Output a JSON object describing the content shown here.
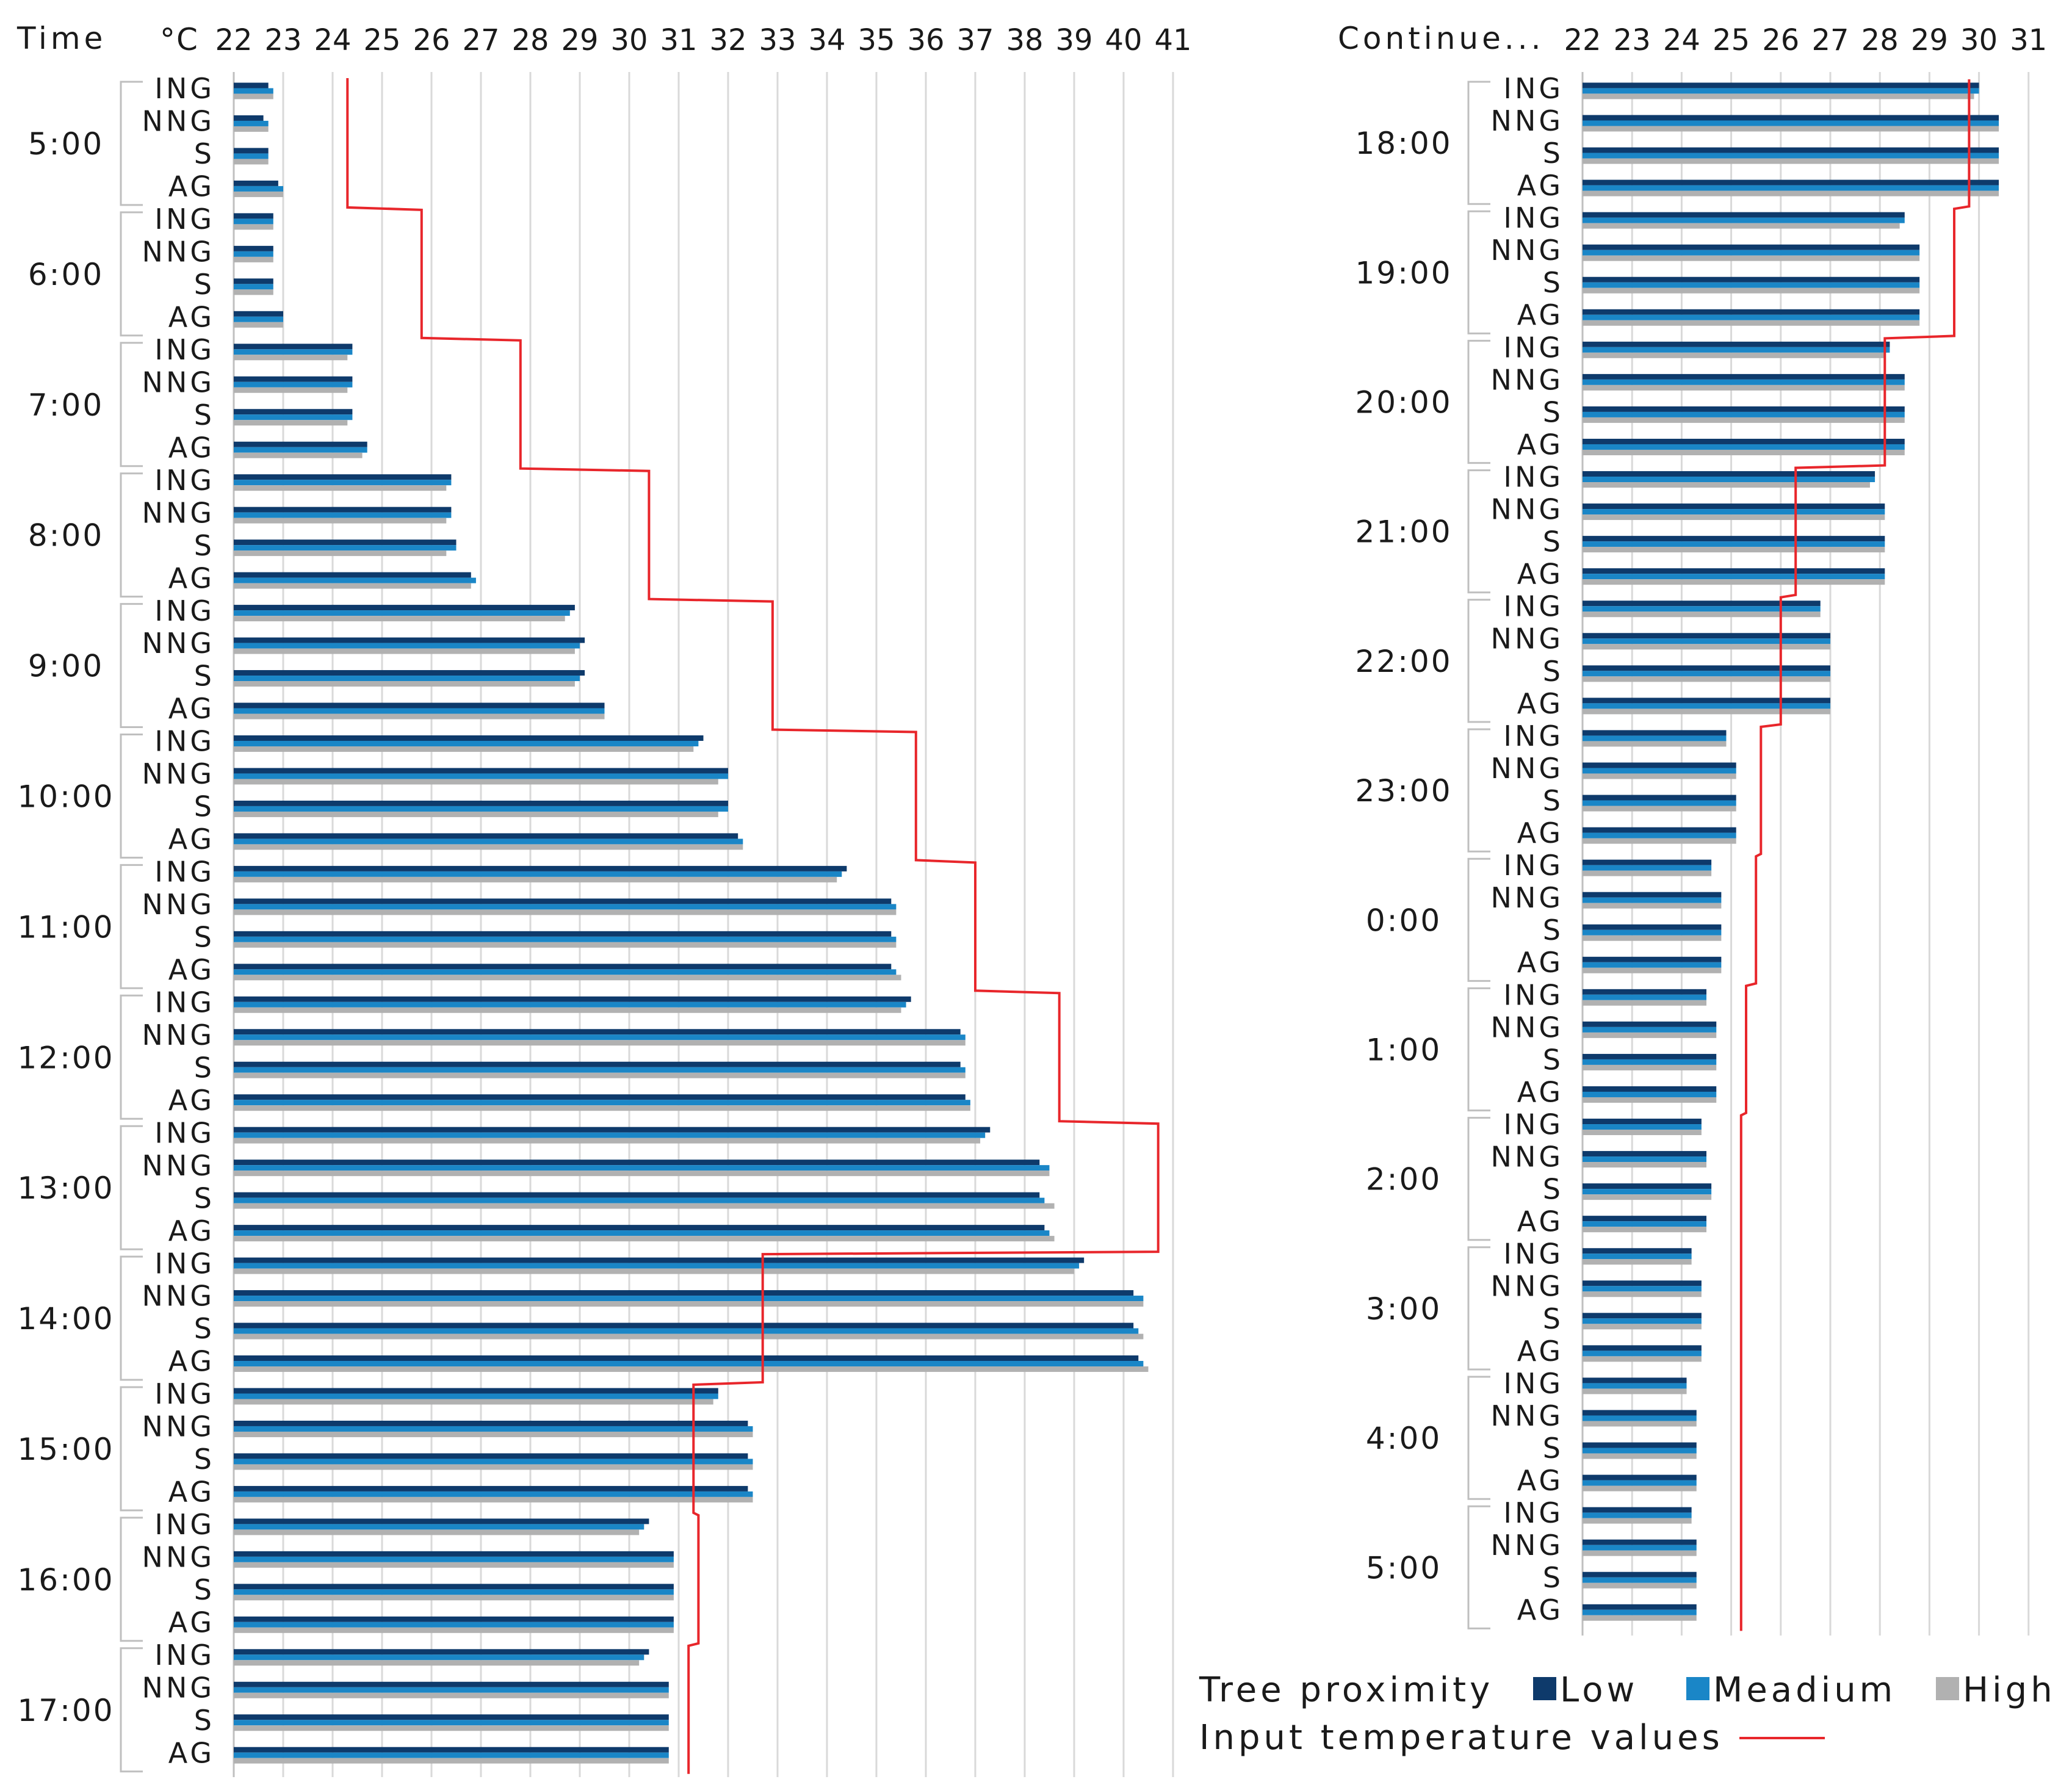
{
  "chart_data": {
    "type": "bar",
    "orientation": "horizontal",
    "unit_label": "°C",
    "time_header": "Time",
    "continue_header": "Continue...",
    "panels": [
      {
        "name": "left",
        "xlim": [
          22,
          41
        ],
        "ticks": [
          22,
          23,
          24,
          25,
          26,
          27,
          28,
          29,
          30,
          31,
          32,
          33,
          34,
          35,
          36,
          37,
          38,
          39,
          40,
          41
        ]
      },
      {
        "name": "right",
        "xlim": [
          22,
          31
        ],
        "ticks": [
          22,
          23,
          24,
          25,
          26,
          27,
          28,
          29,
          30,
          31
        ]
      }
    ],
    "categories": [
      "ING",
      "NNG",
      "S",
      "AG"
    ],
    "legend": {
      "title": "Tree proximity",
      "series": [
        {
          "name": "Low",
          "color": "#0e3a6b"
        },
        {
          "name": "Meadium",
          "color": "#1a86c7"
        },
        {
          "name": "High",
          "color": "#b1b1b1"
        }
      ],
      "line_label": "Input temperature values",
      "line_color": "#e8262b"
    },
    "times": [
      {
        "time": "5:00",
        "panel": 0,
        "input": 24.3,
        "values": [
          [
            22.7,
            22.8,
            22.8
          ],
          [
            22.6,
            22.7,
            22.7
          ],
          [
            22.7,
            22.7,
            22.7
          ],
          [
            22.9,
            23.0,
            23.0
          ]
        ]
      },
      {
        "time": "6:00",
        "panel": 0,
        "input": 25.8,
        "values": [
          [
            22.8,
            22.8,
            22.8
          ],
          [
            22.8,
            22.8,
            22.8
          ],
          [
            22.8,
            22.8,
            22.8
          ],
          [
            23.0,
            23.0,
            23.0
          ]
        ]
      },
      {
        "time": "7:00",
        "panel": 0,
        "input": 27.8,
        "values": [
          [
            24.4,
            24.4,
            24.3
          ],
          [
            24.4,
            24.4,
            24.3
          ],
          [
            24.4,
            24.4,
            24.3
          ],
          [
            24.7,
            24.7,
            24.6
          ]
        ]
      },
      {
        "time": "8:00",
        "panel": 0,
        "input": 30.4,
        "values": [
          [
            26.4,
            26.4,
            26.3
          ],
          [
            26.4,
            26.4,
            26.3
          ],
          [
            26.5,
            26.5,
            26.3
          ],
          [
            26.8,
            26.9,
            26.8
          ]
        ]
      },
      {
        "time": "9:00",
        "panel": 0,
        "input": 32.9,
        "values": [
          [
            28.9,
            28.8,
            28.7
          ],
          [
            29.1,
            29.0,
            28.9
          ],
          [
            29.1,
            29.0,
            28.9
          ],
          [
            29.5,
            29.5,
            29.5
          ]
        ]
      },
      {
        "time": "10:00",
        "panel": 0,
        "input": 35.8,
        "values": [
          [
            31.5,
            31.4,
            31.3
          ],
          [
            32.0,
            32.0,
            31.8
          ],
          [
            32.0,
            32.0,
            31.8
          ],
          [
            32.2,
            32.3,
            32.3
          ]
        ]
      },
      {
        "time": "11:00",
        "panel": 0,
        "input": 37.0,
        "values": [
          [
            34.4,
            34.3,
            34.2
          ],
          [
            35.3,
            35.4,
            35.4
          ],
          [
            35.3,
            35.4,
            35.4
          ],
          [
            35.3,
            35.4,
            35.5
          ]
        ]
      },
      {
        "time": "12:00",
        "panel": 0,
        "input": 38.7,
        "values": [
          [
            35.7,
            35.6,
            35.5
          ],
          [
            36.7,
            36.8,
            36.8
          ],
          [
            36.7,
            36.8,
            36.8
          ],
          [
            36.8,
            36.9,
            36.9
          ]
        ]
      },
      {
        "time": "13:00",
        "panel": 0,
        "input": 40.7,
        "values": [
          [
            37.3,
            37.2,
            37.1
          ],
          [
            38.3,
            38.5,
            38.5
          ],
          [
            38.3,
            38.4,
            38.6
          ],
          [
            38.4,
            38.5,
            38.6
          ]
        ]
      },
      {
        "time": "14:00",
        "panel": 0,
        "input": 32.7,
        "values": [
          [
            39.2,
            39.1,
            39.0
          ],
          [
            40.2,
            40.4,
            40.4
          ],
          [
            40.2,
            40.3,
            40.4
          ],
          [
            40.3,
            40.4,
            40.5
          ]
        ]
      },
      {
        "time": "15:00",
        "panel": 0,
        "input": 31.3,
        "values": [
          [
            31.8,
            31.8,
            31.7
          ],
          [
            32.4,
            32.5,
            32.5
          ],
          [
            32.4,
            32.5,
            32.5
          ],
          [
            32.4,
            32.5,
            32.5
          ]
        ]
      },
      {
        "time": "16:00",
        "panel": 0,
        "input": 31.4,
        "values": [
          [
            30.4,
            30.3,
            30.2
          ],
          [
            30.9,
            30.9,
            30.9
          ],
          [
            30.9,
            30.9,
            30.9
          ],
          [
            30.9,
            30.9,
            30.9
          ]
        ]
      },
      {
        "time": "17:00",
        "panel": 0,
        "input": 31.2,
        "values": [
          [
            30.4,
            30.3,
            30.2
          ],
          [
            30.8,
            30.8,
            30.8
          ],
          [
            30.8,
            30.8,
            30.8
          ],
          [
            30.8,
            30.8,
            30.8
          ]
        ]
      },
      {
        "time": "18:00",
        "panel": 1,
        "input": 29.8,
        "values": [
          [
            30.0,
            30.0,
            29.9
          ],
          [
            30.4,
            30.4,
            30.4
          ],
          [
            30.4,
            30.4,
            30.4
          ],
          [
            30.4,
            30.4,
            30.4
          ]
        ]
      },
      {
        "time": "19:00",
        "panel": 1,
        "input": 29.5,
        "values": [
          [
            28.5,
            28.5,
            28.4
          ],
          [
            28.8,
            28.8,
            28.8
          ],
          [
            28.8,
            28.8,
            28.8
          ],
          [
            28.8,
            28.8,
            28.8
          ]
        ]
      },
      {
        "time": "20:00",
        "panel": 1,
        "input": 28.1,
        "values": [
          [
            28.2,
            28.2,
            28.1
          ],
          [
            28.5,
            28.5,
            28.5
          ],
          [
            28.5,
            28.5,
            28.5
          ],
          [
            28.5,
            28.5,
            28.5
          ]
        ]
      },
      {
        "time": "21:00",
        "panel": 1,
        "input": 26.3,
        "values": [
          [
            27.9,
            27.9,
            27.8
          ],
          [
            28.1,
            28.1,
            28.1
          ],
          [
            28.1,
            28.1,
            28.1
          ],
          [
            28.1,
            28.1,
            28.1
          ]
        ]
      },
      {
        "time": "22:00",
        "panel": 1,
        "input": 26.0,
        "values": [
          [
            26.8,
            26.8,
            26.8
          ],
          [
            27.0,
            27.0,
            27.0
          ],
          [
            27.0,
            27.0,
            27.0
          ],
          [
            27.0,
            27.0,
            27.0
          ]
        ]
      },
      {
        "time": "23:00",
        "panel": 1,
        "input": 25.6,
        "values": [
          [
            24.9,
            24.9,
            24.9
          ],
          [
            25.1,
            25.1,
            25.1
          ],
          [
            25.1,
            25.1,
            25.1
          ],
          [
            25.1,
            25.1,
            25.1
          ]
        ]
      },
      {
        "time": "0:00",
        "panel": 1,
        "input": 25.5,
        "values": [
          [
            24.6,
            24.6,
            24.6
          ],
          [
            24.8,
            24.8,
            24.8
          ],
          [
            24.8,
            24.8,
            24.8
          ],
          [
            24.8,
            24.8,
            24.8
          ]
        ]
      },
      {
        "time": "1:00",
        "panel": 1,
        "input": 25.3,
        "values": [
          [
            24.5,
            24.5,
            24.5
          ],
          [
            24.7,
            24.7,
            24.7
          ],
          [
            24.7,
            24.7,
            24.7
          ],
          [
            24.7,
            24.7,
            24.7
          ]
        ]
      },
      {
        "time": "2:00",
        "panel": 1,
        "input": 25.2,
        "values": [
          [
            24.4,
            24.4,
            24.4
          ],
          [
            24.5,
            24.5,
            24.5
          ],
          [
            24.6,
            24.6,
            24.6
          ],
          [
            24.5,
            24.5,
            24.5
          ]
        ]
      },
      {
        "time": "3:00",
        "panel": 1,
        "input": 25.2,
        "values": [
          [
            24.2,
            24.2,
            24.2
          ],
          [
            24.4,
            24.4,
            24.4
          ],
          [
            24.4,
            24.4,
            24.4
          ],
          [
            24.4,
            24.4,
            24.4
          ]
        ]
      },
      {
        "time": "4:00",
        "panel": 1,
        "input": 25.2,
        "values": [
          [
            24.1,
            24.1,
            24.1
          ],
          [
            24.3,
            24.3,
            24.3
          ],
          [
            24.3,
            24.3,
            24.3
          ],
          [
            24.3,
            24.3,
            24.3
          ]
        ]
      },
      {
        "time": "5:00",
        "panel": 1,
        "input": 25.2,
        "values": [
          [
            24.2,
            24.2,
            24.2
          ],
          [
            24.3,
            24.3,
            24.3
          ],
          [
            24.3,
            24.3,
            24.3
          ],
          [
            24.3,
            24.3,
            24.3
          ]
        ]
      }
    ]
  }
}
